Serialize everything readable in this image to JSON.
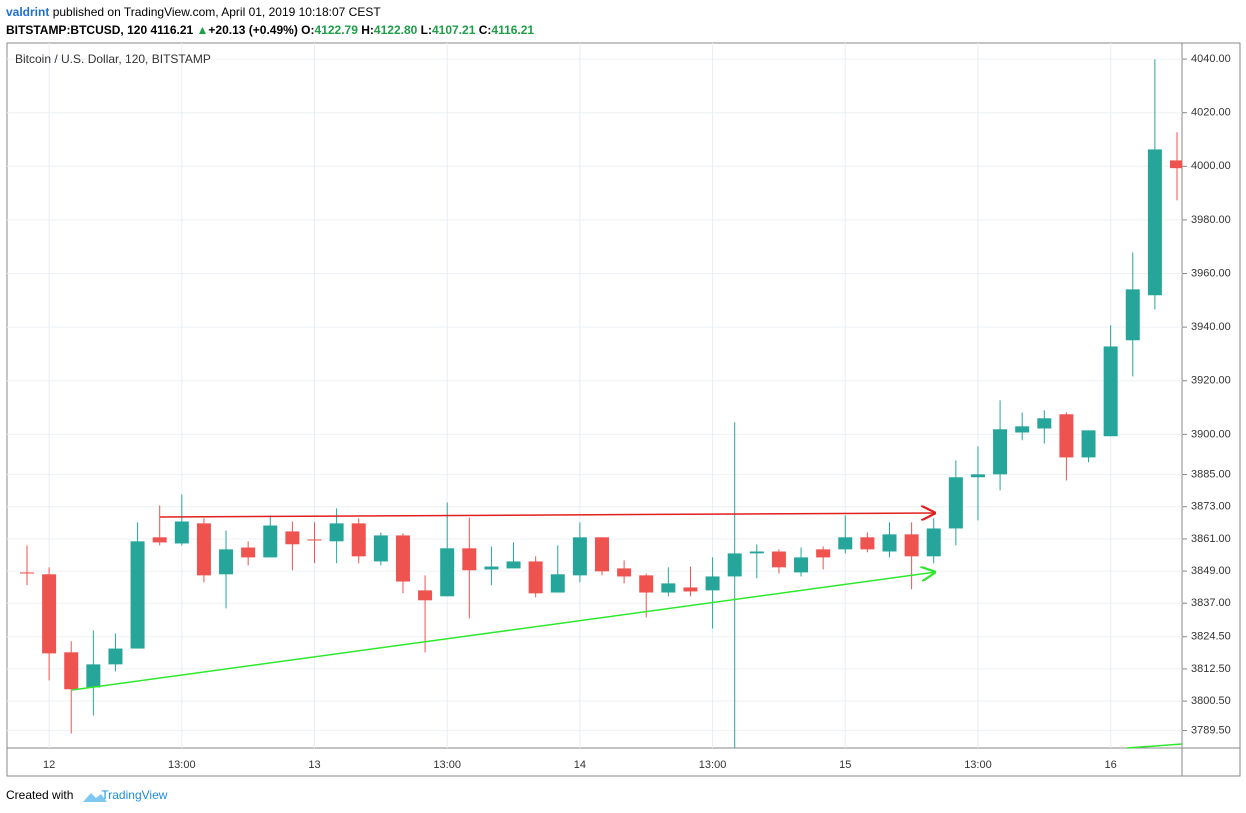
{
  "header": {
    "author": "valdrint",
    "published": "published on TradingView.com, April 01, 2019 10:18:07 CEST",
    "symbol": "BITSTAMP:BTCUSD, 120",
    "last": "4116.21",
    "arrow": "▲",
    "change": "+20.13 (+0.49%)",
    "o_label": "O:",
    "o": "4122.79",
    "h_label": "H:",
    "h": "4122.80",
    "l_label": "L:",
    "l": "4107.21",
    "c_label": "C:",
    "c": "4116.21"
  },
  "chart_data": {
    "type": "candlestick",
    "title": "Bitcoin / U.S. Dollar, 120, BITSTAMP",
    "categories": [
      null,
      "12",
      null,
      null,
      null,
      null,
      null,
      "13:00",
      null,
      null,
      null,
      null,
      null,
      "13",
      null,
      null,
      null,
      null,
      null,
      "13:00",
      null,
      null,
      null,
      null,
      null,
      "14",
      null,
      null,
      null,
      null,
      null,
      "13:00",
      null,
      null,
      null,
      null,
      null,
      "15",
      null,
      null,
      null,
      null,
      null,
      "13:00",
      null,
      null,
      null,
      null,
      null,
      "16",
      null,
      null,
      null
    ],
    "open": [
      3848.5,
      3847.8,
      3818.7,
      3805.6,
      3814.2,
      3820.1,
      3861.6,
      3859.3,
      3866.8,
      3847.8,
      3857.8,
      3854.1,
      3863.8,
      3860.8,
      3860.1,
      3866.8,
      3852.6,
      3862.3,
      3841.8,
      3839.6,
      3857.5,
      3849.6,
      3850.0,
      3852.6,
      3841.0,
      3847.4,
      3861.6,
      3850.0,
      3847.4,
      3841.0,
      3842.9,
      3841.8,
      3847.0,
      3855.6,
      3856.3,
      3848.5,
      3857.1,
      3857.1,
      3861.6,
      3856.3,
      3862.7,
      3854.5,
      3864.9,
      3884.0,
      3885.1,
      3900.7,
      3902.2,
      3907.5,
      3891.4,
      3899.3,
      3935.1,
      3951.9,
      4002.2
    ],
    "high": [
      3858.6,
      3850.4,
      3822.8,
      3826.9,
      3825.7,
      3867.2,
      3873.5,
      3877.6,
      3868.7,
      3864.2,
      3860.1,
      3869.8,
      3867.5,
      3867.2,
      3872.4,
      3868.7,
      3863.4,
      3863.1,
      3847.4,
      3874.6,
      3869.0,
      3858.2,
      3859.7,
      3854.5,
      3858.6,
      3867.2,
      3861.6,
      3853.0,
      3848.1,
      3850.4,
      3850.7,
      3854.1,
      3904.5,
      3859.0,
      3857.1,
      3857.8,
      3858.2,
      3869.8,
      3863.4,
      3867.2,
      3867.2,
      3868.7,
      3890.3,
      3895.5,
      3912.7,
      3908.2,
      3909.0,
      3908.2,
      3901.5,
      3940.7,
      3967.9,
      4039.9,
      4012.7
    ],
    "low": [
      3843.7,
      3808.2,
      3788.4,
      3795.1,
      3811.6,
      3820.1,
      3858.6,
      3858.6,
      3844.8,
      3835.1,
      3851.1,
      3854.1,
      3849.3,
      3851.9,
      3851.9,
      3851.9,
      3851.1,
      3840.7,
      3818.7,
      3839.6,
      3831.3,
      3843.7,
      3850.0,
      3839.2,
      3841.0,
      3844.8,
      3847.4,
      3844.4,
      3831.7,
      3839.6,
      3839.6,
      3827.6,
      3783,
      3846.3,
      3848.1,
      3847.0,
      3849.6,
      3855.6,
      3856.0,
      3854.1,
      3842.2,
      3851.9,
      3858.6,
      3867.9,
      3879.1,
      3897.8,
      3896.6,
      3882.8,
      3889.6,
      3899.3,
      3921.6,
      3946.6,
      3987.3
    ],
    "close": [
      3848.1,
      3818.3,
      3804.9,
      3814.2,
      3820.1,
      3860.1,
      3859.7,
      3867.5,
      3847.4,
      3857.1,
      3854.1,
      3866.0,
      3859.0,
      3860.4,
      3866.8,
      3854.5,
      3862.3,
      3845.1,
      3838.1,
      3857.5,
      3849.3,
      3850.7,
      3852.6,
      3840.7,
      3847.8,
      3861.6,
      3848.9,
      3847.0,
      3841.0,
      3844.4,
      3841.4,
      3847.0,
      3855.6,
      3856.3,
      3850.4,
      3854.1,
      3854.1,
      3861.6,
      3857.1,
      3862.7,
      3854.5,
      3864.9,
      3884.0,
      3885.1,
      3901.9,
      3903.0,
      3906.0,
      3891.4,
      3901.5,
      3932.8,
      3954.1,
      4006.3,
      3999.3
    ],
    "up_color": "#26a69a",
    "down_color": "#ef5350",
    "grid": true,
    "ylim": [
      3783,
      4046
    ],
    "yticks": [
      {
        "value": 4040,
        "label": "4040.00"
      },
      {
        "value": 4020,
        "label": "4020.00"
      },
      {
        "value": 4000,
        "label": "4000.00"
      },
      {
        "value": 3980,
        "label": "3980.00"
      },
      {
        "value": 3960,
        "label": "3960.00"
      },
      {
        "value": 3940,
        "label": "3940.00"
      },
      {
        "value": 3920,
        "label": "3920.00"
      },
      {
        "value": 3900,
        "label": "3900.00"
      },
      {
        "value": 3885,
        "label": "3885.00"
      },
      {
        "value": 3873,
        "label": "3873.00"
      },
      {
        "value": 3861,
        "label": "3861.00"
      },
      {
        "value": 3849,
        "label": "3849.00"
      },
      {
        "value": 3837,
        "label": "3837.00"
      },
      {
        "value": 3824.5,
        "label": "3824.50"
      },
      {
        "value": 3812.5,
        "label": "3812.50"
      },
      {
        "value": 3800.5,
        "label": "3800.50"
      },
      {
        "value": 3789.5,
        "label": "3789.50"
      }
    ]
  },
  "footer": {
    "created": "Created with",
    "brand": "TradingView"
  }
}
